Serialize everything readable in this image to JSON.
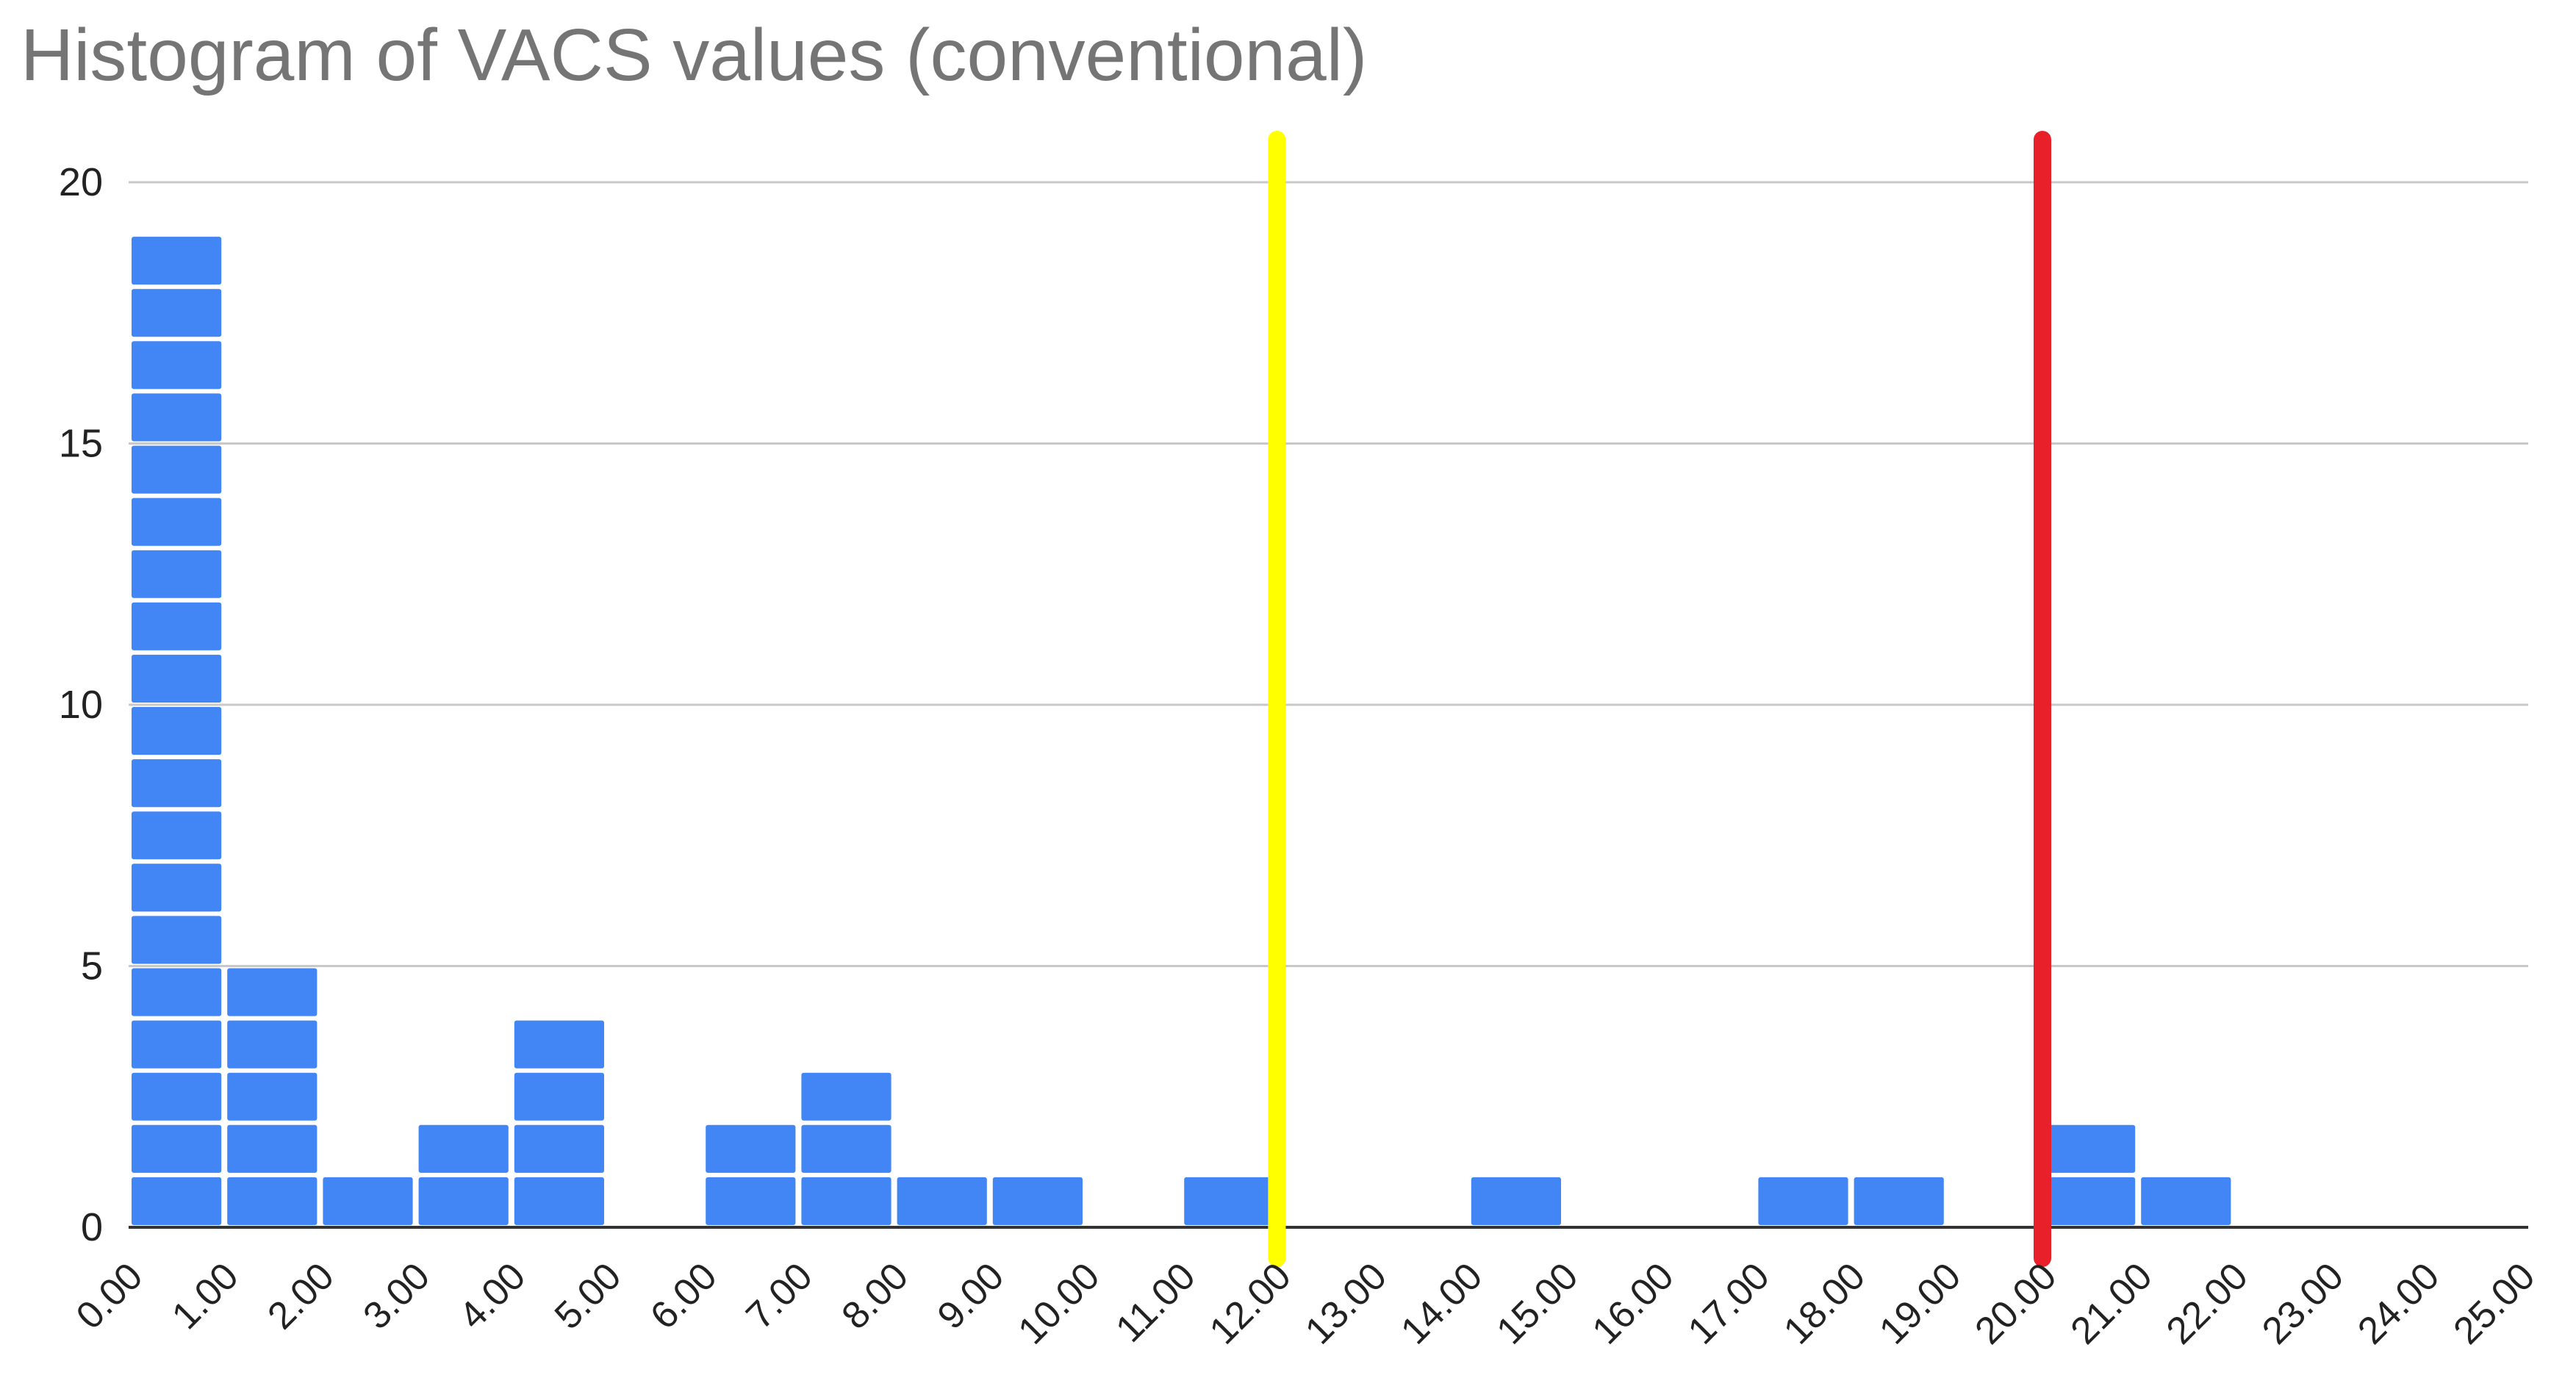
{
  "chart_data": {
    "type": "bar",
    "title": "Histogram of VACS values (conventional)",
    "xlabel": "",
    "ylabel": "",
    "xlim": [
      0,
      25
    ],
    "ylim": [
      0,
      20
    ],
    "y_ticks": [
      0,
      5,
      10,
      15,
      20
    ],
    "x_ticks": [
      "0.00",
      "1.00",
      "2.00",
      "3.00",
      "4.00",
      "5.00",
      "6.00",
      "7.00",
      "8.00",
      "9.00",
      "10.00",
      "11.00",
      "12.00",
      "13.00",
      "14.00",
      "15.00",
      "16.00",
      "17.00",
      "18.00",
      "19.00",
      "20.00",
      "21.00",
      "22.00",
      "23.00",
      "24.00",
      "25.00"
    ],
    "bins": [
      {
        "start": 0,
        "end": 1,
        "count": 19
      },
      {
        "start": 1,
        "end": 2,
        "count": 5
      },
      {
        "start": 2,
        "end": 3,
        "count": 1
      },
      {
        "start": 3,
        "end": 4,
        "count": 2
      },
      {
        "start": 4,
        "end": 5,
        "count": 4
      },
      {
        "start": 5,
        "end": 6,
        "count": 0
      },
      {
        "start": 6,
        "end": 7,
        "count": 2
      },
      {
        "start": 7,
        "end": 8,
        "count": 3
      },
      {
        "start": 8,
        "end": 9,
        "count": 1
      },
      {
        "start": 9,
        "end": 10,
        "count": 1
      },
      {
        "start": 10,
        "end": 11,
        "count": 0
      },
      {
        "start": 11,
        "end": 12,
        "count": 1
      },
      {
        "start": 12,
        "end": 13,
        "count": 0
      },
      {
        "start": 13,
        "end": 14,
        "count": 0
      },
      {
        "start": 14,
        "end": 15,
        "count": 1
      },
      {
        "start": 15,
        "end": 16,
        "count": 0
      },
      {
        "start": 16,
        "end": 17,
        "count": 0
      },
      {
        "start": 17,
        "end": 18,
        "count": 1
      },
      {
        "start": 18,
        "end": 19,
        "count": 1
      },
      {
        "start": 19,
        "end": 20,
        "count": 0
      },
      {
        "start": 20,
        "end": 21,
        "count": 2
      },
      {
        "start": 21,
        "end": 22,
        "count": 1
      },
      {
        "start": 22,
        "end": 23,
        "count": 0
      },
      {
        "start": 23,
        "end": 24,
        "count": 0
      },
      {
        "start": 24,
        "end": 25,
        "count": 0
      }
    ],
    "reference_lines": [
      {
        "x": 12,
        "color": "#ffff00"
      },
      {
        "x": 20,
        "color": "#e8202a"
      }
    ],
    "bar_color": "#4285f4",
    "grid": true,
    "legend": "none"
  }
}
